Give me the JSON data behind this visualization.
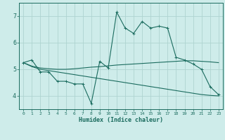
{
  "xlabel": "Humidex (Indice chaleur)",
  "bg_color": "#ceecea",
  "line_color": "#1a6b5e",
  "grid_color": "#aed4d0",
  "xlim": [
    -0.5,
    23.5
  ],
  "ylim": [
    3.5,
    7.5
  ],
  "yticks": [
    4,
    5,
    6,
    7
  ],
  "xticks": [
    0,
    1,
    2,
    3,
    4,
    5,
    6,
    7,
    8,
    9,
    10,
    11,
    12,
    13,
    14,
    15,
    16,
    17,
    18,
    19,
    20,
    21,
    22,
    23
  ],
  "series1_x": [
    0,
    1,
    2,
    3,
    4,
    5,
    6,
    7,
    8,
    9,
    10,
    11,
    12,
    13,
    14,
    15,
    16,
    17,
    18,
    19,
    20,
    21,
    22,
    23
  ],
  "series1_y": [
    5.25,
    5.35,
    4.9,
    4.9,
    4.55,
    4.55,
    4.45,
    4.45,
    3.72,
    5.3,
    5.05,
    7.15,
    6.55,
    6.35,
    6.8,
    6.55,
    6.62,
    6.55,
    5.45,
    5.35,
    5.2,
    5.0,
    4.35,
    4.05
  ],
  "series2_x": [
    0,
    1,
    2,
    3,
    4,
    5,
    6,
    7,
    8,
    9,
    10,
    11,
    12,
    13,
    14,
    15,
    16,
    17,
    18,
    19,
    20,
    21,
    22,
    23
  ],
  "series2_y": [
    5.25,
    5.12,
    5.05,
    5.02,
    5.0,
    5.0,
    5.02,
    5.05,
    5.08,
    5.1,
    5.13,
    5.16,
    5.18,
    5.2,
    5.22,
    5.24,
    5.26,
    5.28,
    5.3,
    5.32,
    5.32,
    5.3,
    5.28,
    5.25
  ],
  "series3_x": [
    0,
    1,
    2,
    3,
    4,
    5,
    6,
    7,
    8,
    9,
    10,
    11,
    12,
    13,
    14,
    15,
    16,
    17,
    18,
    19,
    20,
    21,
    22,
    23
  ],
  "series3_y": [
    5.25,
    5.1,
    5.0,
    4.95,
    4.9,
    4.85,
    4.8,
    4.75,
    4.7,
    4.65,
    4.6,
    4.55,
    4.5,
    4.45,
    4.4,
    4.35,
    4.3,
    4.25,
    4.2,
    4.15,
    4.1,
    4.05,
    4.02,
    4.0
  ]
}
